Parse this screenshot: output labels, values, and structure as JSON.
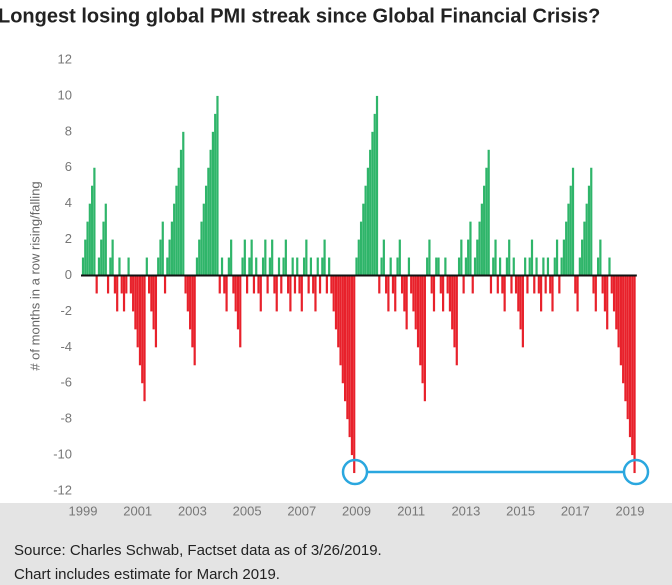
{
  "chart_data": {
    "type": "bar",
    "title": "Longest losing global PMI streak since Global Financial Crisis?",
    "y_label": "# of months in a row rising/falling",
    "source": [
      "Source: Charles Schwab, Factset data as of 3/26/2019.",
      "Chart includes estimate for March 2019."
    ],
    "ylim": [
      -12,
      12
    ],
    "yticks": [
      -12,
      -10,
      -8,
      -6,
      -4,
      -2,
      0,
      2,
      4,
      6,
      8,
      10,
      12
    ],
    "positive_color": "#2fb56a",
    "negative_color": "#e8212b",
    "categories": [
      "1999",
      null,
      null,
      null,
      null,
      null,
      null,
      null,
      null,
      null,
      null,
      null,
      null,
      null,
      null,
      null,
      null,
      null,
      null,
      null,
      null,
      null,
      null,
      null,
      "2001",
      null,
      null,
      null,
      null,
      null,
      null,
      null,
      null,
      null,
      null,
      null,
      null,
      null,
      null,
      null,
      null,
      null,
      null,
      null,
      null,
      null,
      null,
      null,
      "2003",
      null,
      null,
      null,
      null,
      null,
      null,
      null,
      null,
      null,
      null,
      null,
      null,
      null,
      null,
      null,
      null,
      null,
      null,
      null,
      null,
      null,
      null,
      null,
      "2005",
      null,
      null,
      null,
      null,
      null,
      null,
      null,
      null,
      null,
      null,
      null,
      null,
      null,
      null,
      null,
      null,
      null,
      null,
      null,
      null,
      null,
      null,
      null,
      "2007",
      null,
      null,
      null,
      null,
      null,
      null,
      null,
      null,
      null,
      null,
      null,
      null,
      null,
      null,
      null,
      null,
      null,
      null,
      null,
      null,
      null,
      null,
      null,
      "2009",
      null,
      null,
      null,
      null,
      null,
      null,
      null,
      null,
      null,
      null,
      null,
      null,
      null,
      null,
      null,
      null,
      null,
      null,
      null,
      null,
      null,
      null,
      null,
      "2011",
      null,
      null,
      null,
      null,
      null,
      null,
      null,
      null,
      null,
      null,
      null,
      null,
      null,
      null,
      null,
      null,
      null,
      null,
      null,
      null,
      null,
      null,
      null,
      "2013",
      null,
      null,
      null,
      null,
      null,
      null,
      null,
      null,
      null,
      null,
      null,
      null,
      null,
      null,
      null,
      null,
      null,
      null,
      null,
      null,
      null,
      null,
      null,
      "2015",
      null,
      null,
      null,
      null,
      null,
      null,
      null,
      null,
      null,
      null,
      null,
      null,
      null,
      null,
      null,
      null,
      null,
      null,
      null,
      null,
      null,
      null,
      null,
      "2017",
      null,
      null,
      null,
      null,
      null,
      null,
      null,
      null,
      null,
      null,
      null,
      null,
      null,
      null,
      null,
      null,
      null,
      null,
      null,
      null,
      null,
      null,
      null,
      "2019",
      null,
      null
    ],
    "values": [
      1,
      2,
      3,
      4,
      5,
      6,
      -1,
      1,
      2,
      3,
      4,
      -1,
      1,
      2,
      -1,
      -2,
      1,
      -1,
      -2,
      -1,
      1,
      -1,
      -2,
      -3,
      -4,
      -5,
      -6,
      -7,
      1,
      -1,
      -2,
      -3,
      -4,
      1,
      2,
      3,
      -1,
      1,
      2,
      3,
      4,
      5,
      6,
      7,
      8,
      -1,
      -2,
      -3,
      -4,
      -5,
      1,
      2,
      3,
      4,
      5,
      6,
      7,
      8,
      9,
      10,
      -1,
      1,
      -1,
      -2,
      1,
      2,
      -1,
      -2,
      -3,
      -4,
      1,
      2,
      -1,
      1,
      2,
      -1,
      1,
      -1,
      -2,
      1,
      2,
      -1,
      1,
      2,
      -1,
      -2,
      1,
      -1,
      1,
      2,
      -1,
      -2,
      1,
      -1,
      1,
      -1,
      -2,
      1,
      2,
      -1,
      1,
      -1,
      -2,
      1,
      -1,
      1,
      2,
      -1,
      1,
      -1,
      -2,
      -3,
      -4,
      -5,
      -6,
      -7,
      -8,
      -9,
      -10,
      -11,
      1,
      2,
      3,
      4,
      5,
      6,
      7,
      8,
      9,
      10,
      -1,
      1,
      2,
      -1,
      -2,
      1,
      -1,
      -2,
      1,
      2,
      -1,
      -2,
      -3,
      1,
      -1,
      -2,
      -3,
      -4,
      -5,
      -6,
      -7,
      1,
      2,
      -1,
      -2,
      1,
      1,
      -1,
      -2,
      1,
      -1,
      -2,
      -3,
      -4,
      -5,
      1,
      2,
      -1,
      1,
      2,
      3,
      -1,
      1,
      2,
      3,
      4,
      5,
      6,
      7,
      -1,
      1,
      2,
      -1,
      1,
      -1,
      -2,
      1,
      2,
      -1,
      1,
      -1,
      -2,
      -3,
      -4,
      1,
      -1,
      1,
      2,
      -1,
      1,
      -1,
      -2,
      1,
      -1,
      1,
      -1,
      -2,
      1,
      2,
      -1,
      1,
      2,
      3,
      4,
      5,
      6,
      -1,
      -2,
      1,
      2,
      3,
      4,
      5,
      6,
      -1,
      -2,
      1,
      2,
      -1,
      -2,
      -3,
      1,
      -1,
      -2,
      -3,
      -4,
      -5,
      -6,
      -7,
      -8,
      -9,
      -10,
      -11
    ]
  }
}
